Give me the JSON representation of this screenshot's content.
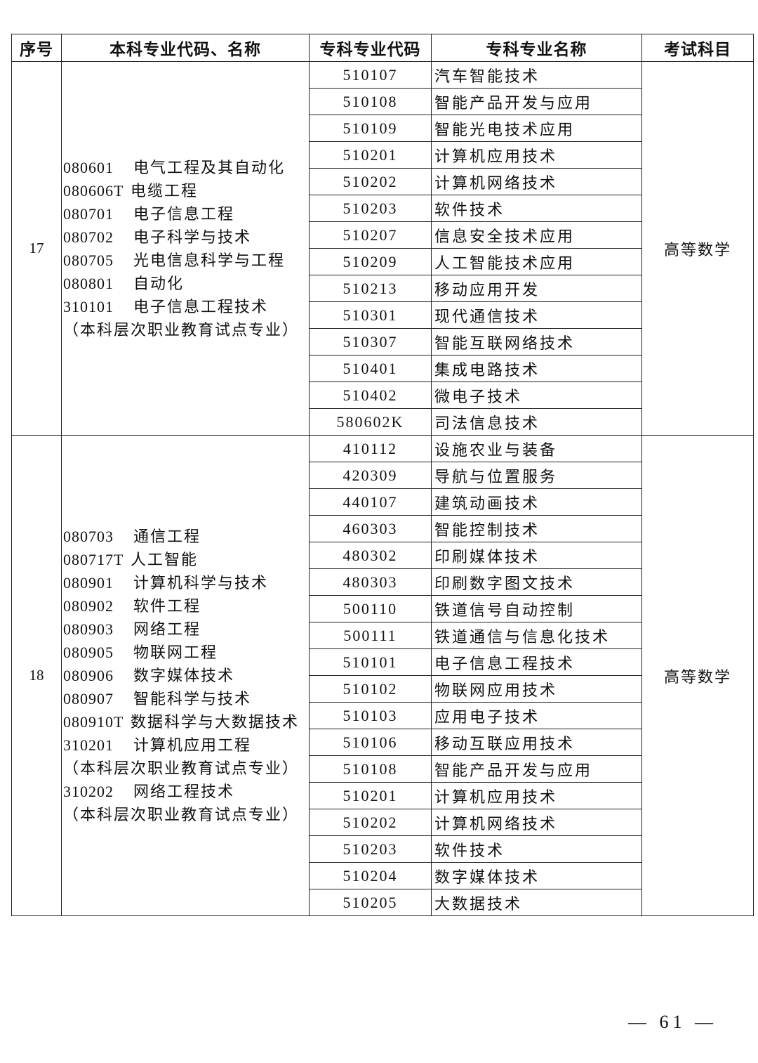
{
  "header": [
    "序号",
    "本科专业代码、名称",
    "专科专业代码",
    "专科专业名称",
    "考试科目"
  ],
  "groups": [
    {
      "seq": "17",
      "subject": "高等数学",
      "bachelor": [
        {
          "code": "080601",
          "name": "电气工程及其自动化"
        },
        {
          "code": "080606T",
          "name": "电缆工程"
        },
        {
          "code": "080701",
          "name": "电子信息工程"
        },
        {
          "code": "080702",
          "name": "电子科学与技术"
        },
        {
          "code": "080705",
          "name": "光电信息科学与工程"
        },
        {
          "code": "080801",
          "name": "自动化"
        },
        {
          "code": "310101",
          "name": "电子信息工程技术"
        },
        {
          "code": "",
          "name": "（本科层次职业教育试点专业）"
        }
      ],
      "majors": [
        {
          "code": "510107",
          "name": "汽车智能技术"
        },
        {
          "code": "510108",
          "name": "智能产品开发与应用"
        },
        {
          "code": "510109",
          "name": "智能光电技术应用"
        },
        {
          "code": "510201",
          "name": "计算机应用技术"
        },
        {
          "code": "510202",
          "name": "计算机网络技术"
        },
        {
          "code": "510203",
          "name": "软件技术"
        },
        {
          "code": "510207",
          "name": "信息安全技术应用"
        },
        {
          "code": "510209",
          "name": "人工智能技术应用"
        },
        {
          "code": "510213",
          "name": "移动应用开发"
        },
        {
          "code": "510301",
          "name": "现代通信技术"
        },
        {
          "code": "510307",
          "name": "智能互联网络技术"
        },
        {
          "code": "510401",
          "name": "集成电路技术"
        },
        {
          "code": "510402",
          "name": "微电子技术"
        },
        {
          "code": "580602K",
          "name": "司法信息技术"
        }
      ]
    },
    {
      "seq": "18",
      "subject": "高等数学",
      "bachelor": [
        {
          "code": "080703",
          "name": "通信工程"
        },
        {
          "code": "080717T",
          "name": "人工智能"
        },
        {
          "code": "080901",
          "name": "计算机科学与技术"
        },
        {
          "code": "080902",
          "name": "软件工程"
        },
        {
          "code": "080903",
          "name": "网络工程"
        },
        {
          "code": "080905",
          "name": "物联网工程"
        },
        {
          "code": "080906",
          "name": "数字媒体技术"
        },
        {
          "code": "080907",
          "name": "智能科学与技术"
        },
        {
          "code": "080910T",
          "name": "数据科学与大数据技术"
        },
        {
          "code": "310201",
          "name": "计算机应用工程"
        },
        {
          "code": "",
          "name": "（本科层次职业教育试点专业）"
        },
        {
          "code": "310202",
          "name": "网络工程技术"
        },
        {
          "code": "",
          "name": "（本科层次职业教育试点专业）"
        }
      ],
      "majors": [
        {
          "code": "410112",
          "name": "设施农业与装备"
        },
        {
          "code": "420309",
          "name": "导航与位置服务"
        },
        {
          "code": "440107",
          "name": "建筑动画技术"
        },
        {
          "code": "460303",
          "name": "智能控制技术"
        },
        {
          "code": "480302",
          "name": "印刷媒体技术"
        },
        {
          "code": "480303",
          "name": "印刷数字图文技术"
        },
        {
          "code": "500110",
          "name": "铁道信号自动控制"
        },
        {
          "code": "500111",
          "name": "铁道通信与信息化技术"
        },
        {
          "code": "510101",
          "name": "电子信息工程技术"
        },
        {
          "code": "510102",
          "name": "物联网应用技术"
        },
        {
          "code": "510103",
          "name": "应用电子技术"
        },
        {
          "code": "510106",
          "name": "移动互联应用技术"
        },
        {
          "code": "510108",
          "name": "智能产品开发与应用"
        },
        {
          "code": "510201",
          "name": "计算机应用技术"
        },
        {
          "code": "510202",
          "name": "计算机网络技术"
        },
        {
          "code": "510203",
          "name": "软件技术"
        },
        {
          "code": "510204",
          "name": "数字媒体技术"
        },
        {
          "code": "510205",
          "name": "大数据技术"
        }
      ]
    }
  ],
  "page_number": "— 61 —"
}
